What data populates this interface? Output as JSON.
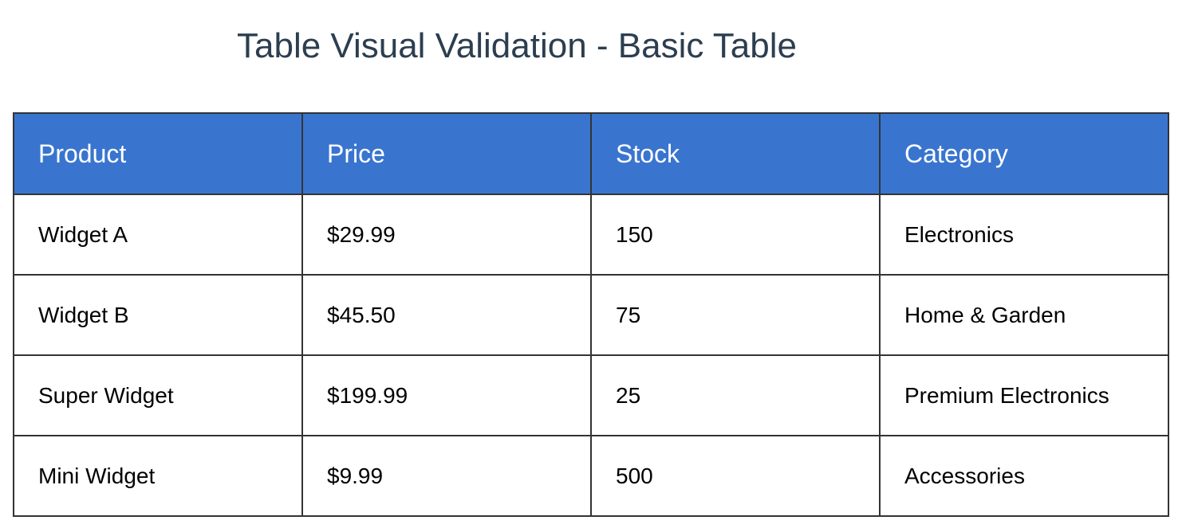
{
  "page": {
    "title": "Table Visual Validation - Basic Table"
  },
  "table": {
    "headers": [
      "Product",
      "Price",
      "Stock",
      "Category"
    ],
    "rows": [
      [
        "Widget A",
        "$29.99",
        "150",
        "Electronics"
      ],
      [
        "Widget B",
        "$45.50",
        "75",
        "Home & Garden"
      ],
      [
        "Super Widget",
        "$199.99",
        "25",
        "Premium Electronics"
      ],
      [
        "Mini Widget",
        "$9.99",
        "500",
        "Accessories"
      ]
    ]
  },
  "colors": {
    "header_background": "#3975cf",
    "header_text": "#ffffff",
    "border": "#333333",
    "title_text": "#2c3e50"
  }
}
